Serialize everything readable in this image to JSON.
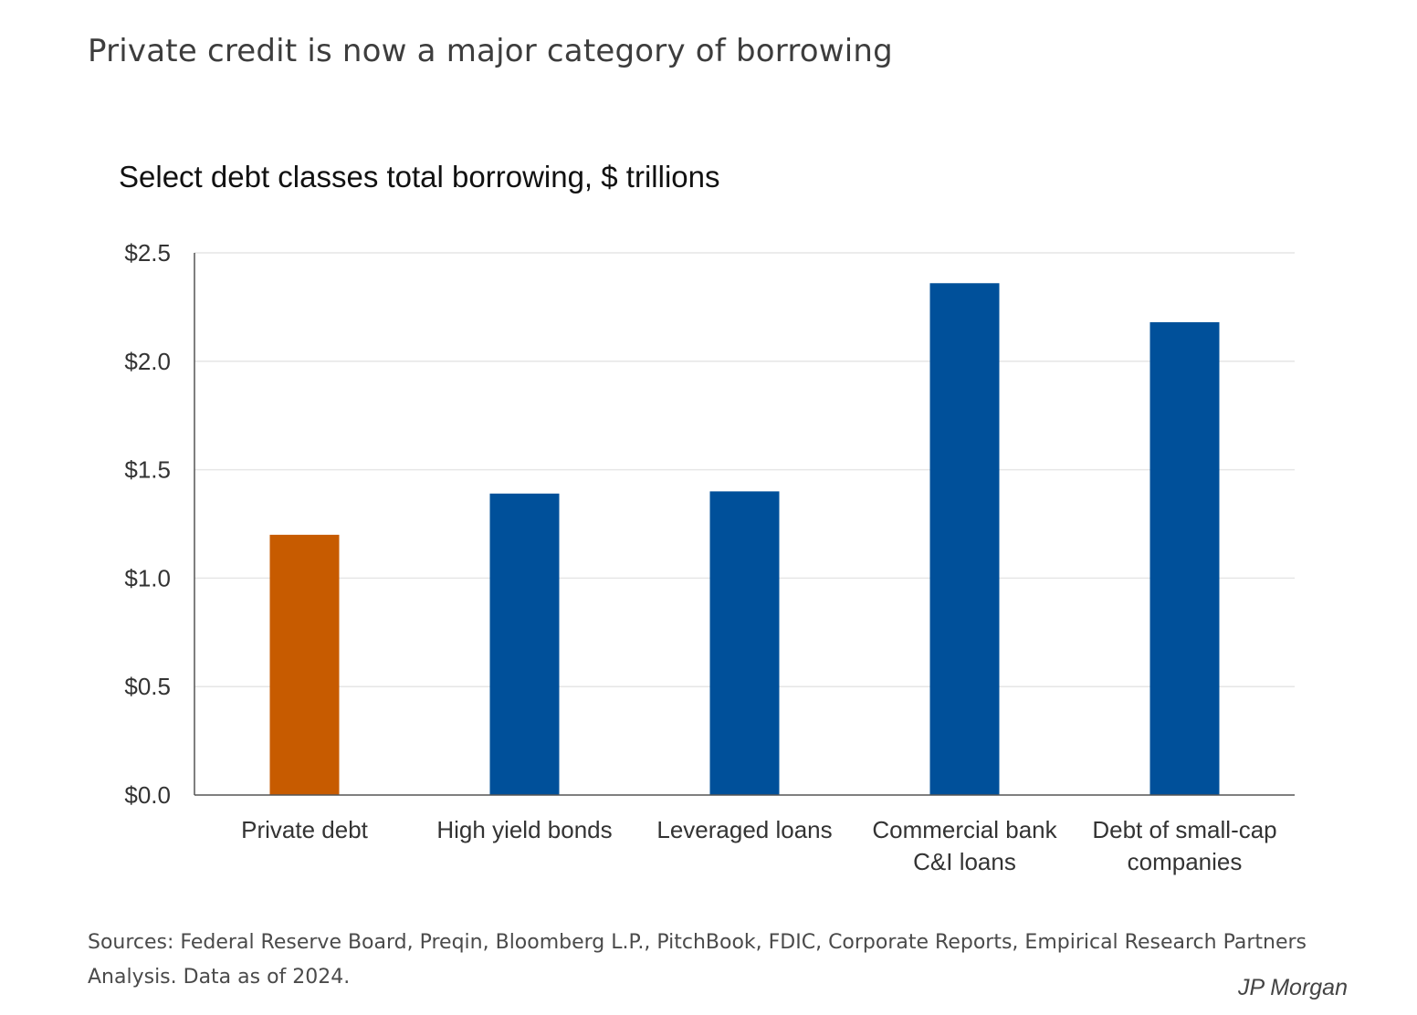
{
  "page": {
    "title": "Private credit is now a major category of borrowing"
  },
  "chart_data": {
    "type": "bar",
    "title": "Select debt classes total borrowing, $ trillions",
    "xlabel": "",
    "ylabel": "",
    "categories": [
      [
        "Private debt"
      ],
      [
        "High yield bonds"
      ],
      [
        "Leveraged loans"
      ],
      [
        "Commercial bank",
        "C&I loans"
      ],
      [
        "Debt of small-cap",
        "companies"
      ]
    ],
    "values": [
      1.2,
      1.39,
      1.4,
      2.36,
      2.18
    ],
    "bar_colors": [
      "#C75B00",
      "#00509A",
      "#00509A",
      "#00509A",
      "#00509A"
    ],
    "ylim": [
      0,
      2.5
    ],
    "yticks": [
      0,
      0.5,
      1.0,
      1.5,
      2.0,
      2.5
    ],
    "ytick_labels": [
      "$0.0",
      "$0.5",
      "$1.0",
      "$1.5",
      "$2.0",
      "$2.5"
    ],
    "grid": true,
    "legend": "none"
  },
  "footer": {
    "sources": "Sources: Federal Reserve Board, Preqin, Bloomberg L.P., PitchBook, FDIC, Corporate Reports, Empirical Research Partners Analysis. Data as of 2024.",
    "brand": "JP Morgan"
  },
  "colors": {
    "highlight": "#C75B00",
    "primary": "#00509A",
    "grid": "#e6e6e6",
    "axis": "#555555"
  }
}
